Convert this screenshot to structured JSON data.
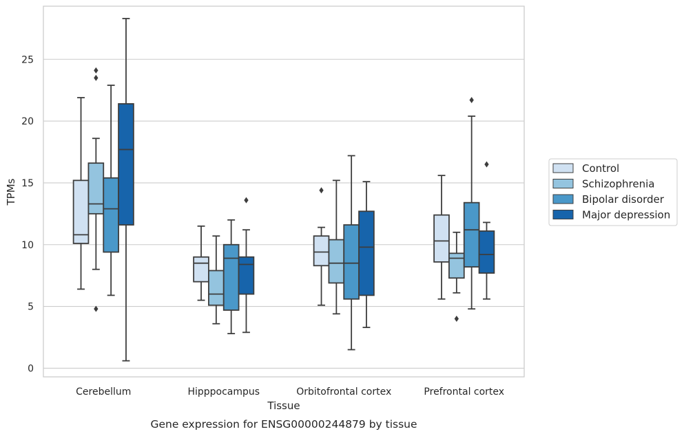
{
  "chart_data": {
    "type": "box",
    "title": "",
    "caption": "Gene expression for ENSG00000244879 by tissue",
    "xlabel": "Tissue",
    "ylabel": "TPMs",
    "ylim": [
      -0.7,
      29.3
    ],
    "yticks": [
      0,
      5,
      10,
      15,
      20,
      25
    ],
    "grid": "horizontal",
    "legend_position": "right",
    "categories": [
      "Cerebellum",
      "Hipppocampus",
      "Orbitofrontal cortex",
      "Prefrontal cortex"
    ],
    "series": [
      {
        "name": "Control",
        "color": "#d0e1f2",
        "boxes": [
          {
            "whislo": 6.4,
            "q1": 10.1,
            "med": 10.8,
            "q3": 15.2,
            "whishi": 21.9,
            "fliers": []
          },
          {
            "whislo": 5.5,
            "q1": 7.0,
            "med": 8.5,
            "q3": 9.0,
            "whishi": 11.5,
            "fliers": []
          },
          {
            "whislo": 5.1,
            "q1": 8.3,
            "med": 9.4,
            "q3": 10.7,
            "whishi": 11.4,
            "fliers": [
              14.4
            ]
          },
          {
            "whislo": 5.6,
            "q1": 8.6,
            "med": 10.3,
            "q3": 12.4,
            "whishi": 15.6,
            "fliers": []
          }
        ]
      },
      {
        "name": "Schizophrenia",
        "color": "#94c4df",
        "boxes": [
          {
            "whislo": 8.0,
            "q1": 12.5,
            "med": 13.3,
            "q3": 16.6,
            "whishi": 18.6,
            "fliers": [
              24.1,
              23.5,
              4.8
            ]
          },
          {
            "whislo": 3.6,
            "q1": 5.1,
            "med": 6.0,
            "q3": 7.9,
            "whishi": 10.7,
            "fliers": []
          },
          {
            "whislo": 4.4,
            "q1": 6.9,
            "med": 8.5,
            "q3": 10.4,
            "whishi": 15.2,
            "fliers": []
          },
          {
            "whislo": 6.1,
            "q1": 7.3,
            "med": 8.9,
            "q3": 9.3,
            "whishi": 11.0,
            "fliers": [
              4.0
            ]
          }
        ]
      },
      {
        "name": "Bipolar disorder",
        "color": "#4a98c9",
        "boxes": [
          {
            "whislo": 5.9,
            "q1": 9.4,
            "med": 12.9,
            "q3": 15.4,
            "whishi": 22.9,
            "fliers": []
          },
          {
            "whislo": 2.8,
            "q1": 4.7,
            "med": 8.9,
            "q3": 10.0,
            "whishi": 12.0,
            "fliers": []
          },
          {
            "whislo": 1.5,
            "q1": 5.6,
            "med": 8.5,
            "q3": 11.6,
            "whishi": 17.2,
            "fliers": []
          },
          {
            "whislo": 4.8,
            "q1": 8.2,
            "med": 11.2,
            "q3": 13.4,
            "whishi": 20.4,
            "fliers": [
              21.7
            ]
          }
        ]
      },
      {
        "name": "Major depression",
        "color": "#1764ab",
        "boxes": [
          {
            "whislo": 0.6,
            "q1": 11.6,
            "med": 17.7,
            "q3": 21.4,
            "whishi": 28.3,
            "fliers": []
          },
          {
            "whislo": 2.9,
            "q1": 6.0,
            "med": 8.4,
            "q3": 9.0,
            "whishi": 11.2,
            "fliers": [
              13.6
            ]
          },
          {
            "whislo": 3.3,
            "q1": 5.9,
            "med": 9.8,
            "q3": 12.7,
            "whishi": 15.1,
            "fliers": []
          },
          {
            "whislo": 5.6,
            "q1": 7.7,
            "med": 9.2,
            "q3": 11.1,
            "whishi": 11.8,
            "fliers": [
              16.5
            ]
          }
        ]
      }
    ]
  }
}
